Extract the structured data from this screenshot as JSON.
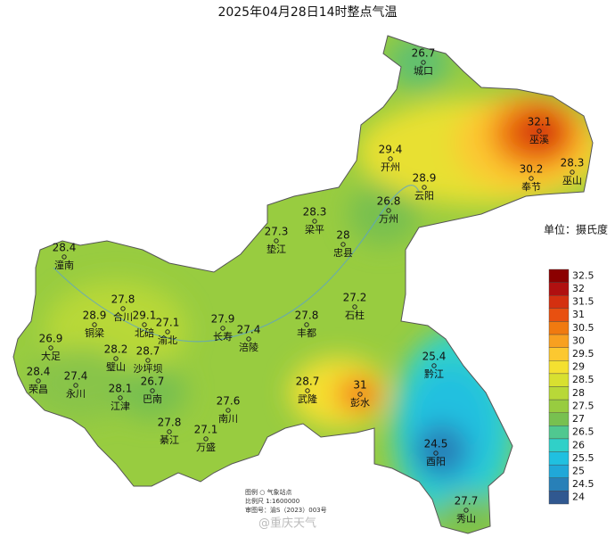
{
  "title": "2025年04月28日14时整点气温",
  "legend": {
    "unit": "单位：摄氏度",
    "scale": [
      {
        "value": 32.5,
        "color": "#8b0000"
      },
      {
        "value": 32,
        "color": "#b01010"
      },
      {
        "value": 31.5,
        "color": "#d43010"
      },
      {
        "value": 31,
        "color": "#e85010"
      },
      {
        "value": 30.5,
        "color": "#f07a10"
      },
      {
        "value": 30,
        "color": "#f8a020"
      },
      {
        "value": 29.5,
        "color": "#fcc830"
      },
      {
        "value": 29,
        "color": "#f4e030"
      },
      {
        "value": 28.5,
        "color": "#d8e030"
      },
      {
        "value": 28,
        "color": "#b8d838"
      },
      {
        "value": 27.5,
        "color": "#98cc40"
      },
      {
        "value": 27,
        "color": "#78c050"
      },
      {
        "value": 26.5,
        "color": "#50c890"
      },
      {
        "value": 26,
        "color": "#30d0c8"
      },
      {
        "value": 25.5,
        "color": "#20c0e0"
      },
      {
        "value": 25,
        "color": "#20a8d8"
      },
      {
        "value": 24.5,
        "color": "#2880b8"
      },
      {
        "value": 24,
        "color": "#305890"
      }
    ]
  },
  "stations": [
    {
      "name": "城口",
      "value": 26.7
    },
    {
      "name": "巫溪",
      "value": 32.1
    },
    {
      "name": "开州",
      "value": 29.4
    },
    {
      "name": "云阳",
      "value": 28.9
    },
    {
      "name": "奉节",
      "value": 30.2
    },
    {
      "name": "巫山",
      "value": 28.3
    },
    {
      "name": "万州",
      "value": 26.8
    },
    {
      "name": "梁平",
      "value": 28.3
    },
    {
      "name": "垫江",
      "value": 27.3
    },
    {
      "name": "忠县",
      "value": 28
    },
    {
      "name": "潼南",
      "value": 28.4
    },
    {
      "name": "石柱",
      "value": 27.2
    },
    {
      "name": "合川",
      "value": 27.8
    },
    {
      "name": "铜梁",
      "value": 28.9
    },
    {
      "name": "北碚",
      "value": 29.1
    },
    {
      "name": "渝北",
      "value": 27.1
    },
    {
      "name": "长寿",
      "value": 27.9
    },
    {
      "name": "涪陵",
      "value": 27.4
    },
    {
      "name": "丰都",
      "value": 27.8
    },
    {
      "name": "大足",
      "value": 26.9
    },
    {
      "name": "璧山",
      "value": 28.2
    },
    {
      "name": "沙坪坝",
      "value": 28.7
    },
    {
      "name": "黔江",
      "value": 25.4
    },
    {
      "name": "荣昌",
      "value": 28.4
    },
    {
      "name": "永川",
      "value": 27.4
    },
    {
      "name": "江津",
      "value": 28.1
    },
    {
      "name": "巴南",
      "value": 26.7
    },
    {
      "name": "武隆",
      "value": 28.7
    },
    {
      "name": "彭水",
      "value": 31
    },
    {
      "name": "南川",
      "value": 27.6
    },
    {
      "name": "綦江",
      "value": 27.8
    },
    {
      "name": "万盛",
      "value": 27.1
    },
    {
      "name": "酉阳",
      "value": 24.5
    },
    {
      "name": "秀山",
      "value": 27.7
    }
  ],
  "footer": {
    "legend": "图例  ○  气象站点",
    "scale": "比例尺  1:1600000",
    "approval": "审图号：渝S（2023）003号"
  },
  "watermark": "@重庆天气"
}
